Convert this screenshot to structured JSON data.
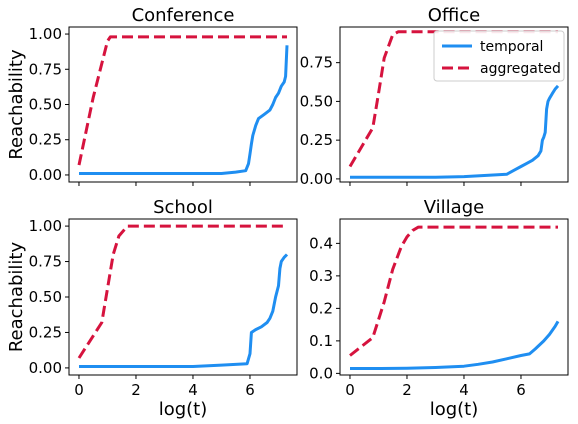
{
  "chart_data": [
    {
      "type": "line",
      "title": "Conference",
      "xlabel": "",
      "ylabel": "Reachability",
      "xlim": [
        -0.35,
        7.65
      ],
      "ylim": [
        -0.05,
        1.05
      ],
      "xticks": [
        0,
        2,
        4,
        6
      ],
      "xtick_labels_shown": false,
      "yticks": [
        0.0,
        0.25,
        0.5,
        0.75,
        1.0
      ],
      "ytick_labels": [
        "0.00",
        "0.25",
        "0.50",
        "0.75",
        "1.00"
      ],
      "series": [
        {
          "name": "temporal",
          "color": "#1f8ef1",
          "dash": "solid",
          "x": [
            0,
            1,
            2,
            3,
            4,
            5,
            5.5,
            5.85,
            5.95,
            6.0,
            6.05,
            6.1,
            6.2,
            6.3,
            6.5,
            6.7,
            6.8,
            6.9,
            7.0,
            7.1,
            7.2,
            7.25,
            7.3
          ],
          "y": [
            0.01,
            0.01,
            0.01,
            0.01,
            0.01,
            0.01,
            0.02,
            0.03,
            0.08,
            0.15,
            0.22,
            0.28,
            0.35,
            0.4,
            0.43,
            0.46,
            0.5,
            0.55,
            0.58,
            0.63,
            0.66,
            0.7,
            0.92
          ]
        },
        {
          "name": "aggregated",
          "color": "#d6133e",
          "dash": "dashed",
          "x": [
            0,
            0.5,
            1.0,
            1.1,
            7.3
          ],
          "y": [
            0.07,
            0.55,
            0.95,
            0.98,
            0.98
          ]
        }
      ]
    },
    {
      "type": "line",
      "title": "Office",
      "xlabel": "",
      "ylabel": "",
      "xlim": [
        -0.35,
        7.65
      ],
      "ylim": [
        -0.02,
        0.98
      ],
      "xticks": [
        0,
        2,
        4,
        6
      ],
      "xtick_labels_shown": false,
      "yticks": [
        0.0,
        0.25,
        0.5,
        0.75
      ],
      "ytick_labels": [
        "0.00",
        "0.25",
        "0.50",
        "0.75"
      ],
      "legend": {
        "position": "top-right",
        "entries": [
          "temporal",
          "aggregated"
        ]
      },
      "series": [
        {
          "name": "temporal",
          "color": "#1f8ef1",
          "dash": "solid",
          "x": [
            0,
            1,
            2,
            3,
            4,
            5.5,
            5.8,
            6.0,
            6.2,
            6.4,
            6.6,
            6.7,
            6.75,
            6.8,
            6.85,
            6.9,
            6.95,
            7.0,
            7.1,
            7.2,
            7.3
          ],
          "y": [
            0.01,
            0.01,
            0.01,
            0.01,
            0.015,
            0.03,
            0.06,
            0.08,
            0.1,
            0.12,
            0.15,
            0.18,
            0.25,
            0.27,
            0.3,
            0.45,
            0.5,
            0.52,
            0.55,
            0.58,
            0.6
          ]
        },
        {
          "name": "aggregated",
          "color": "#d6133e",
          "dash": "dashed",
          "x": [
            0,
            0.8,
            1.0,
            1.2,
            1.5,
            1.7,
            7.3
          ],
          "y": [
            0.08,
            0.33,
            0.55,
            0.78,
            0.93,
            0.95,
            0.95
          ]
        }
      ]
    },
    {
      "type": "line",
      "title": "School",
      "xlabel": "log(t)",
      "ylabel": "Reachability",
      "xlim": [
        -0.35,
        7.65
      ],
      "ylim": [
        -0.05,
        1.05
      ],
      "xticks": [
        0,
        2,
        4,
        6
      ],
      "xtick_labels": [
        "0",
        "2",
        "4",
        "6"
      ],
      "yticks": [
        0.0,
        0.25,
        0.5,
        0.75,
        1.0
      ],
      "ytick_labels": [
        "0.00",
        "0.25",
        "0.50",
        "0.75",
        "1.00"
      ],
      "series": [
        {
          "name": "temporal",
          "color": "#1f8ef1",
          "dash": "solid",
          "x": [
            0,
            1,
            2,
            3,
            4,
            5,
            5.9,
            6.0,
            6.05,
            6.2,
            6.4,
            6.6,
            6.7,
            6.8,
            6.9,
            7.0,
            7.05,
            7.1,
            7.2,
            7.3
          ],
          "y": [
            0.01,
            0.01,
            0.01,
            0.01,
            0.01,
            0.02,
            0.03,
            0.1,
            0.25,
            0.27,
            0.29,
            0.32,
            0.35,
            0.4,
            0.5,
            0.58,
            0.7,
            0.75,
            0.78,
            0.8
          ]
        },
        {
          "name": "aggregated",
          "color": "#d6133e",
          "dash": "dashed",
          "x": [
            0,
            0.8,
            1.2,
            1.4,
            1.7,
            2.0,
            7.3
          ],
          "y": [
            0.07,
            0.32,
            0.8,
            0.93,
            1.0,
            1.0,
            1.0
          ]
        }
      ]
    },
    {
      "type": "line",
      "title": "Village",
      "xlabel": "log(t)",
      "ylabel": "",
      "xlim": [
        -0.35,
        7.65
      ],
      "ylim": [
        -0.005,
        0.475
      ],
      "xticks": [
        0,
        2,
        4,
        6
      ],
      "xtick_labels": [
        "0",
        "2",
        "4",
        "6"
      ],
      "yticks": [
        0.0,
        0.1,
        0.2,
        0.3,
        0.4
      ],
      "ytick_labels": [
        "0.0",
        "0.1",
        "0.2",
        "0.3",
        "0.4"
      ],
      "series": [
        {
          "name": "temporal",
          "color": "#1f8ef1",
          "dash": "solid",
          "x": [
            0,
            1,
            2,
            3,
            4,
            4.5,
            5,
            5.5,
            6,
            6.3,
            6.5,
            6.8,
            7.0,
            7.2,
            7.3
          ],
          "y": [
            0.015,
            0.015,
            0.016,
            0.018,
            0.022,
            0.028,
            0.035,
            0.045,
            0.055,
            0.06,
            0.075,
            0.1,
            0.12,
            0.145,
            0.16
          ]
        },
        {
          "name": "aggregated",
          "color": "#d6133e",
          "dash": "dashed",
          "x": [
            0,
            0.8,
            1.2,
            1.5,
            1.8,
            2.0,
            2.2,
            2.4,
            7.3
          ],
          "y": [
            0.055,
            0.11,
            0.22,
            0.32,
            0.39,
            0.42,
            0.44,
            0.45,
            0.45
          ]
        }
      ]
    }
  ]
}
